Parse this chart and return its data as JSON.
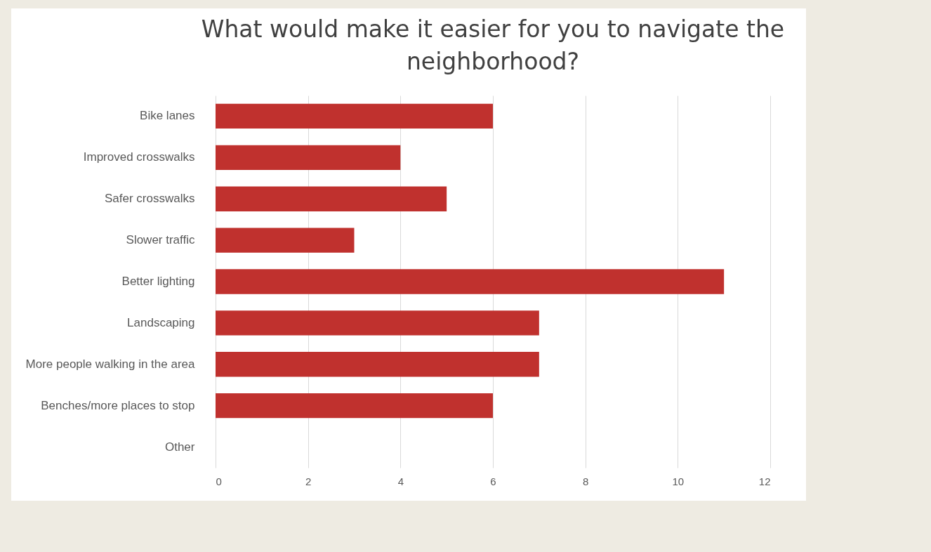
{
  "chart_data": {
    "type": "bar",
    "orientation": "horizontal",
    "title": "What would make it easier for you to navigate the neighborhood?",
    "categories": [
      "Bike lanes",
      "Improved crosswalks",
      "Safer crosswalks",
      "Slower traffic",
      "Better lighting",
      "Landscaping",
      "More people walking in the area",
      "Benches/more places to stop",
      "Other"
    ],
    "values": [
      6,
      4,
      5,
      3,
      11,
      7,
      7,
      6,
      0
    ],
    "color": "#c0312e",
    "xlim": [
      0,
      12
    ],
    "xticks": [
      0,
      2,
      4,
      6,
      8,
      10,
      12
    ],
    "grid": "x"
  }
}
